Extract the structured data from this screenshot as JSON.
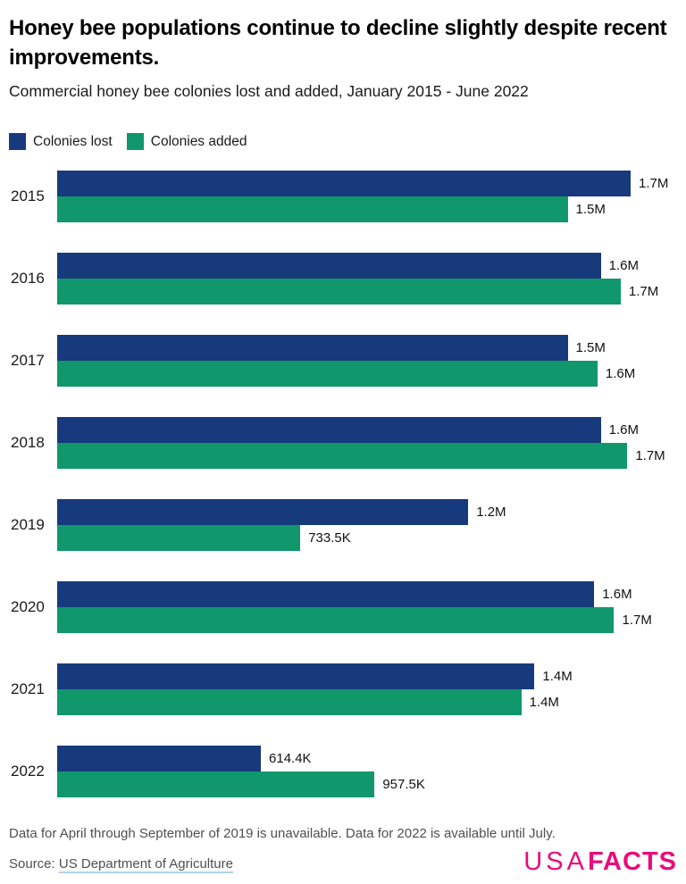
{
  "header": {
    "title": "Honey bee populations continue to decline slightly despite recent improvements.",
    "subtitle": "Commercial honey bee colonies lost and added, January 2015 - June 2022"
  },
  "colors": {
    "navy": "#163A7C",
    "green": "#10976C",
    "logo_pink": "#EA0B7C",
    "footer_gray": "#4F4F4F",
    "link_underline": "#AED6E8"
  },
  "chart_data": {
    "type": "bar",
    "orientation": "horizontal",
    "title": "Commercial honey bee colonies lost and added, January 2015 - June 2022",
    "categories": [
      "2015",
      "2016",
      "2017",
      "2018",
      "2019",
      "2020",
      "2021",
      "2022"
    ],
    "axis_max_thousands": 1870,
    "value_unit": "colonies (thousands)",
    "grid": "off",
    "legend_position": "top-left",
    "series": [
      {
        "name": "Colonies lost",
        "key": "colonies-lost",
        "color_key": "navy",
        "values_thousands": [
          1730,
          1640,
          1540,
          1640,
          1240,
          1620,
          1440,
          614.4
        ],
        "labels": [
          "1.7M",
          "1.6M",
          "1.5M",
          "1.6M",
          "1.2M",
          "1.6M",
          "1.4M",
          "614.4K"
        ]
      },
      {
        "name": "Colonies added",
        "key": "colonies-added",
        "color_key": "green",
        "values_thousands": [
          1540,
          1700,
          1630,
          1720,
          733.5,
          1680,
          1400,
          957.5
        ],
        "labels": [
          "1.5M",
          "1.7M",
          "1.6M",
          "1.7M",
          "733.5K",
          "1.7M",
          "1.4M",
          "957.5K"
        ]
      }
    ]
  },
  "footer": {
    "note": "Data for April through September of 2019 is unavailable. Data for 2022 is available until July.",
    "source_prefix": "Source: ",
    "source_link": "US Department of Agriculture",
    "logo_usa": "USA",
    "logo_facts": "FACTS"
  }
}
